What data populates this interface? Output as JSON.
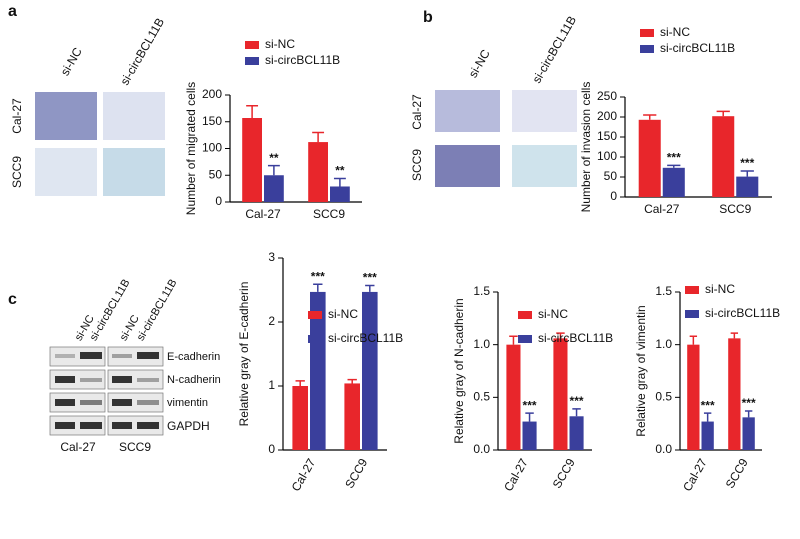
{
  "chart_data": [
    {
      "type": "bar",
      "y_label": "Number of migrated cells",
      "categories": [
        "Cal-27",
        "SCC9"
      ],
      "series": [
        {
          "name": "si-NC",
          "color": "#e8262b",
          "values": [
            157,
            112
          ],
          "errors": [
            23,
            18
          ]
        },
        {
          "name": "si-circBCL11B",
          "color": "#3a3f9c",
          "values": [
            50,
            29
          ],
          "errors": [
            18,
            15
          ]
        }
      ],
      "annotations": [
        "**",
        "**"
      ],
      "ylim": [
        0,
        200
      ],
      "yticks": [
        0,
        50,
        100,
        150,
        200
      ]
    },
    {
      "type": "bar",
      "y_label": "Number of invasion cells",
      "categories": [
        "Cal-27",
        "SCC9"
      ],
      "series": [
        {
          "name": "si-NC",
          "color": "#e8262b",
          "values": [
            193,
            202
          ],
          "errors": [
            12,
            12
          ]
        },
        {
          "name": "si-circBCL11B",
          "color": "#3a3f9c",
          "values": [
            73,
            51
          ],
          "errors": [
            6,
            14
          ]
        }
      ],
      "annotations": [
        "***",
        "***"
      ],
      "ylim": [
        0,
        250
      ],
      "yticks": [
        0,
        50,
        100,
        150,
        200,
        250
      ]
    },
    {
      "type": "bar",
      "y_label": "Relative gray of E-cadherin",
      "categories": [
        "Cal-27",
        "SCC9"
      ],
      "series": [
        {
          "name": "si-NC",
          "color": "#e8262b",
          "values": [
            1.0,
            1.04
          ],
          "errors": [
            0.08,
            0.06
          ]
        },
        {
          "name": "si-circBCL11B",
          "color": "#3a3f9c",
          "values": [
            2.47,
            2.47
          ],
          "errors": [
            0.12,
            0.1
          ]
        }
      ],
      "annotations": [
        "***",
        "***"
      ],
      "ylim": [
        0,
        3
      ],
      "yticks": [
        0,
        1,
        2,
        3
      ]
    },
    {
      "type": "bar",
      "y_label": "Relative gray of N-cadherin",
      "categories": [
        "Cal-27",
        "SCC9"
      ],
      "series": [
        {
          "name": "si-NC",
          "color": "#e8262b",
          "values": [
            1.0,
            1.06
          ],
          "errors": [
            0.08,
            0.05
          ]
        },
        {
          "name": "si-circBCL11B",
          "color": "#3a3f9c",
          "values": [
            0.27,
            0.32
          ],
          "errors": [
            0.08,
            0.07
          ]
        }
      ],
      "annotations": [
        "***",
        "***"
      ],
      "ylim": [
        0,
        1.5
      ],
      "yticks": [
        {
          "value": 0,
          "label": "0.0"
        },
        0.5,
        {
          "value": 1,
          "label": "1.0"
        },
        1.5
      ]
    },
    {
      "type": "bar",
      "y_label": "Relative gray of vimentin",
      "categories": [
        "Cal-27",
        "SCC9"
      ],
      "series": [
        {
          "name": "si-NC",
          "color": "#e8262b",
          "values": [
            1.0,
            1.06
          ],
          "errors": [
            0.08,
            0.05
          ]
        },
        {
          "name": "si-circBCL11B",
          "color": "#3a3f9c",
          "values": [
            0.27,
            0.31
          ],
          "errors": [
            0.08,
            0.06
          ]
        }
      ],
      "annotations": [
        "***",
        "***"
      ],
      "ylim": [
        0,
        1.5
      ],
      "yticks": [
        {
          "value": 0,
          "label": "0.0"
        },
        0.5,
        {
          "value": 1,
          "label": "1.0"
        },
        1.5
      ]
    }
  ],
  "panels": {
    "a": {
      "label": "a",
      "columns": [
        "si-NC",
        "si-circBCL11B"
      ],
      "rows": [
        "Cal-27",
        "SCC9"
      ]
    },
    "b": {
      "label": "b",
      "columns": [
        "si-NC",
        "si-circBCL11B"
      ],
      "rows": [
        "Cal-27",
        "SCC9"
      ]
    },
    "c": {
      "label": "c",
      "columns": [
        "si-NC",
        "si-circBCL11B",
        "si-NC",
        "si-circBCL11B"
      ],
      "bands": [
        "E-cadherin",
        "N-cadherin",
        "vimentin",
        "GAPDH"
      ],
      "groups": [
        "Cal-27",
        "SCC9"
      ]
    }
  }
}
